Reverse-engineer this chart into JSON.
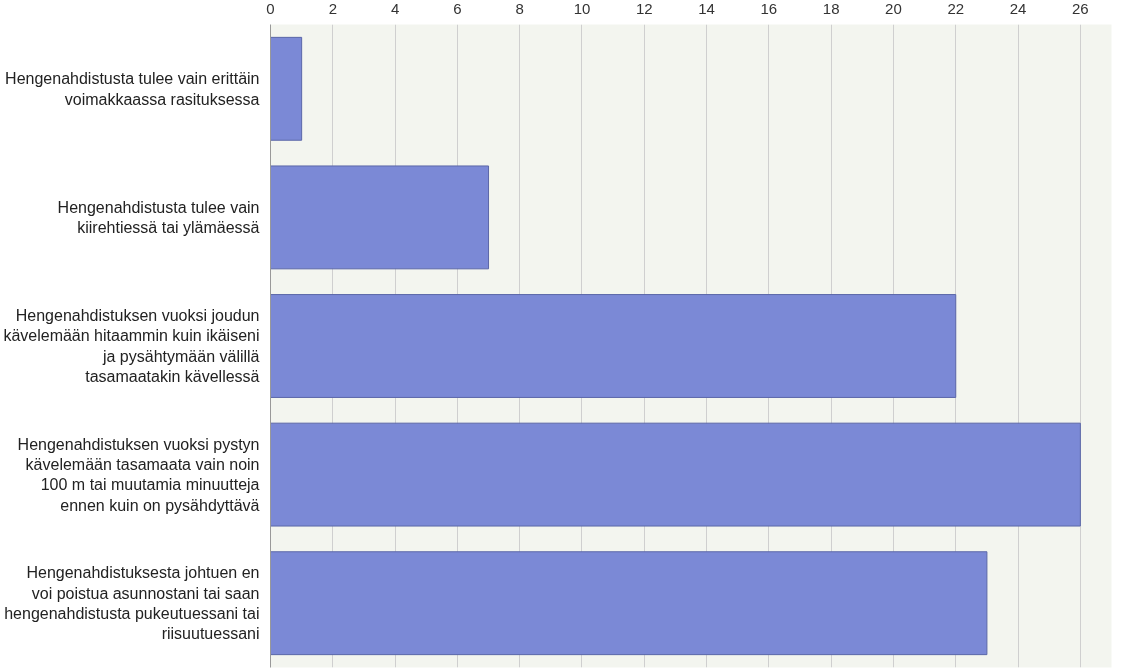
{
  "chart_data": {
    "type": "bar",
    "orientation": "horizontal",
    "categories": [
      "Hengenahdistusta tulee vain erittäin\nvoimakkaassa rasituksessa",
      "Hengenahdistusta tulee vain\nkiirehtiessä tai ylämäessä",
      "Hengenahdistuksen vuoksi joudun\nkävelemään hitaammin kuin ikäiseni\nja pysähtymään välillä\ntasamaatakin kävellessä",
      "Hengenahdistuksen vuoksi pystyn\nkävelemään tasamaata vain noin\n100 m tai muutamia minuutteja\nennen kuin on pysähdyttävä",
      "Hengenahdistuksesta johtuen en\nvoi poistua asunnostani tai saan\nhengenahdistusta pukeutuessani tai\nriisuutuessani"
    ],
    "values": [
      1,
      7,
      22,
      26,
      23
    ],
    "color": "#7b89d6",
    "xlim": [
      0,
      27
    ],
    "xticks": [
      0,
      2,
      4,
      6,
      8,
      10,
      12,
      14,
      16,
      18,
      20,
      22,
      24,
      26
    ],
    "grid": "x"
  }
}
